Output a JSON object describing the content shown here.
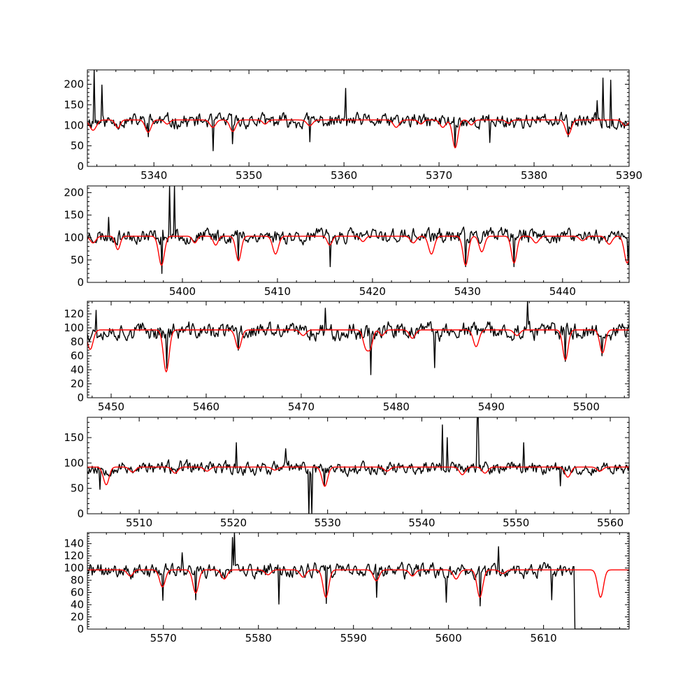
{
  "figure": {
    "background": "#ffffff"
  },
  "chart_data": [
    {
      "type": "line",
      "xlim": [
        5333,
        5390
      ],
      "ylim": [
        0,
        235
      ],
      "xticks": [
        5340,
        5350,
        5360,
        5370,
        5380,
        5390
      ],
      "yticks": [
        0,
        50,
        100,
        150,
        200
      ],
      "series": [
        {
          "color": "#000000",
          "level": 110,
          "noise": 16,
          "seed": 11,
          "spikes": [
            [
              5333.7,
              240
            ],
            [
              5334.5,
              198
            ],
            [
              5360.2,
              190
            ],
            [
              5387.3,
              215
            ],
            [
              5388.1,
              210
            ],
            [
              5386.6,
              160
            ]
          ],
          "dips": [
            [
              5346.2,
              38
            ],
            [
              5339.4,
              72
            ],
            [
              5371.7,
              47
            ],
            [
              5348.3,
              55
            ],
            [
              5356.4,
              60
            ],
            [
              5375.3,
              58
            ],
            [
              5383.6,
              72
            ]
          ]
        },
        {
          "color": "#ff0000",
          "level": 113,
          "lines": [
            [
              5333.6,
              25,
              0.35
            ],
            [
              5336.2,
              20,
              0.25
            ],
            [
              5339.4,
              30,
              0.3
            ],
            [
              5341.4,
              10,
              0.25
            ],
            [
              5346.2,
              18,
              0.3
            ],
            [
              5348.3,
              28,
              0.3
            ],
            [
              5351.7,
              10,
              0.25
            ],
            [
              5356.4,
              14,
              0.3
            ],
            [
              5365.5,
              18,
              0.3
            ],
            [
              5368.1,
              10,
              0.25
            ],
            [
              5370.4,
              18,
              0.3
            ],
            [
              5371.7,
              68,
              0.28
            ],
            [
              5373.4,
              12,
              0.25
            ],
            [
              5377.3,
              8,
              0.25
            ],
            [
              5383.6,
              36,
              0.3
            ],
            [
              5389.6,
              14,
              0.3
            ]
          ]
        }
      ]
    },
    {
      "type": "line",
      "xlim": [
        5390,
        5447
      ],
      "ylim": [
        0,
        215
      ],
      "xticks": [
        5400,
        5410,
        5420,
        5430,
        5440
      ],
      "yticks": [
        0,
        50,
        100,
        150,
        200
      ],
      "series": [
        {
          "color": "#000000",
          "level": 103,
          "noise": 15,
          "seed": 23,
          "spikes": [
            [
              5398.7,
              230
            ],
            [
              5399.2,
              230
            ],
            [
              5392.2,
              145
            ]
          ],
          "dips": [
            [
              5397.8,
              20
            ],
            [
              5415.5,
              35
            ],
            [
              5429.8,
              35
            ],
            [
              5434.9,
              35
            ],
            [
              5446.9,
              40
            ],
            [
              5405.9,
              50
            ]
          ]
        },
        {
          "color": "#ff0000",
          "level": 103,
          "lines": [
            [
              5390.6,
              15,
              0.3
            ],
            [
              5393.2,
              30,
              0.25
            ],
            [
              5397.8,
              65,
              0.3
            ],
            [
              5401.3,
              15,
              0.25
            ],
            [
              5403.5,
              20,
              0.25
            ],
            [
              5405.9,
              55,
              0.28
            ],
            [
              5409.8,
              40,
              0.3
            ],
            [
              5415.5,
              20,
              0.25
            ],
            [
              5419.0,
              12,
              0.25
            ],
            [
              5424.3,
              15,
              0.3
            ],
            [
              5426.2,
              40,
              0.3
            ],
            [
              5429.8,
              65,
              0.28
            ],
            [
              5431.5,
              35,
              0.28
            ],
            [
              5434.9,
              60,
              0.28
            ],
            [
              5437.2,
              15,
              0.3
            ],
            [
              5442.1,
              10,
              0.3
            ],
            [
              5444.9,
              18,
              0.3
            ],
            [
              5446.8,
              60,
              0.3
            ]
          ]
        }
      ]
    },
    {
      "type": "line",
      "xlim": [
        5447.5,
        5504.5
      ],
      "ylim": [
        0,
        138
      ],
      "xticks": [
        5450,
        5460,
        5470,
        5480,
        5490,
        5500
      ],
      "yticks": [
        0,
        20,
        40,
        60,
        80,
        100,
        120
      ],
      "series": [
        {
          "color": "#000000",
          "level": 95,
          "noise": 11,
          "seed": 37,
          "spikes": [
            [
              5493.8,
              140
            ],
            [
              5472.5,
              128
            ],
            [
              5448.4,
              125
            ]
          ],
          "dips": [
            [
              5477.3,
              33
            ],
            [
              5484.0,
              43
            ],
            [
              5455.8,
              42
            ],
            [
              5497.8,
              52
            ],
            [
              5501.7,
              60
            ],
            [
              5463.4,
              68
            ]
          ]
        },
        {
          "color": "#ff0000",
          "level": 97,
          "lines": [
            [
              5447.8,
              28,
              0.3
            ],
            [
              5455.8,
              60,
              0.3
            ],
            [
              5463.4,
              27,
              0.3
            ],
            [
              5470.2,
              8,
              0.3
            ],
            [
              5476.8,
              25,
              0.28
            ],
            [
              5477.3,
              22,
              0.25
            ],
            [
              5478.5,
              8,
              0.25
            ],
            [
              5481.7,
              12,
              0.3
            ],
            [
              5488.4,
              24,
              0.3
            ],
            [
              5492.7,
              8,
              0.3
            ],
            [
              5497.8,
              43,
              0.28
            ],
            [
              5501.7,
              33,
              0.28
            ]
          ]
        }
      ]
    },
    {
      "type": "line",
      "xlim": [
        5504.5,
        5562
      ],
      "ylim": [
        0,
        190
      ],
      "xticks": [
        5510,
        5520,
        5530,
        5540,
        5550,
        5560
      ],
      "yticks": [
        0,
        50,
        100,
        150
      ],
      "series": [
        {
          "color": "#000000",
          "level": 90,
          "noise": 12,
          "seed": 53,
          "spikes": [
            [
              5542.2,
              175
            ],
            [
              5545.9,
              190
            ],
            [
              5546.0,
              190
            ],
            [
              5520.3,
              140
            ],
            [
              5550.8,
              140
            ],
            [
              5525.6,
              128
            ],
            [
              5542.7,
              150
            ]
          ],
          "dips": [
            [
              5528.0,
              0
            ],
            [
              5528.3,
              0
            ],
            [
              5505.8,
              48
            ],
            [
              5554.7,
              55
            ],
            [
              5529.7,
              55
            ]
          ]
        },
        {
          "color": "#ff0000",
          "level": 92,
          "lines": [
            [
              5506.5,
              35,
              0.3
            ],
            [
              5509.3,
              10,
              0.3
            ],
            [
              5513.8,
              12,
              0.3
            ],
            [
              5517.2,
              8,
              0.3
            ],
            [
              5524.4,
              6,
              0.3
            ],
            [
              5529.7,
              38,
              0.3
            ],
            [
              5536.3,
              8,
              0.3
            ],
            [
              5544.3,
              15,
              0.3
            ],
            [
              5546.7,
              12,
              0.3
            ],
            [
              5555.5,
              20,
              0.3
            ],
            [
              5558.9,
              8,
              0.3
            ]
          ]
        }
      ]
    },
    {
      "type": "line",
      "xlim": [
        5562,
        5619
      ],
      "ylim": [
        0,
        158
      ],
      "xticks": [
        5570,
        5580,
        5590,
        5600,
        5610
      ],
      "yticks": [
        0,
        20,
        40,
        60,
        80,
        100,
        120,
        140
      ],
      "series": [
        {
          "color": "#000000",
          "level": 95,
          "noise": 11,
          "seed": 71,
          "end": 5613.2,
          "tail": [
            [
              5613.3,
              0
            ],
            [
              5618.7,
              0
            ]
          ],
          "spikes": [
            [
              5577.5,
              160
            ],
            [
              5577.3,
              150
            ],
            [
              5605.3,
              135
            ],
            [
              5572.0,
              125
            ]
          ],
          "dips": [
            [
              5569.9,
              47
            ],
            [
              5573.4,
              48
            ],
            [
              5582.2,
              41
            ],
            [
              5587.1,
              42
            ],
            [
              5592.4,
              52
            ],
            [
              5599.8,
              44
            ],
            [
              5603.3,
              38
            ],
            [
              5610.9,
              48
            ]
          ]
        },
        {
          "color": "#ff0000",
          "level": 97,
          "lines": [
            [
              5566.5,
              10,
              0.3
            ],
            [
              5569.9,
              28,
              0.3
            ],
            [
              5573.4,
              38,
              0.3
            ],
            [
              5576.4,
              15,
              0.3
            ],
            [
              5581.0,
              8,
              0.3
            ],
            [
              5584.7,
              12,
              0.3
            ],
            [
              5587.1,
              45,
              0.3
            ],
            [
              5592.4,
              18,
              0.3
            ],
            [
              5596.2,
              10,
              0.3
            ],
            [
              5600.8,
              15,
              0.3
            ],
            [
              5603.3,
              45,
              0.3
            ],
            [
              5605.7,
              6,
              0.3
            ],
            [
              5616.0,
              45,
              0.3
            ]
          ]
        }
      ]
    }
  ]
}
